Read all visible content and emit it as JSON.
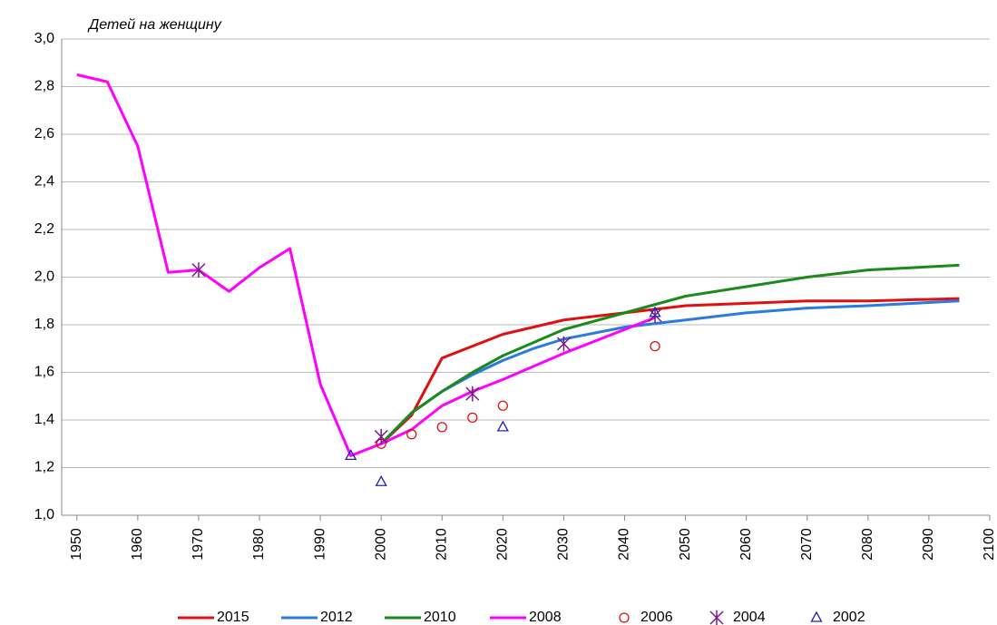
{
  "chart_data": {
    "type": "line",
    "ylabel": "Детей на женщину",
    "xlim": [
      1947.5,
      2100
    ],
    "xticks": [
      1950,
      1960,
      1970,
      1980,
      1990,
      2000,
      2010,
      2020,
      2030,
      2040,
      2050,
      2060,
      2070,
      2080,
      2090,
      2100
    ],
    "ylim": [
      1.0,
      3.0
    ],
    "yticks": [
      {
        "value": 1.0,
        "label": "1,0"
      },
      {
        "value": 1.2,
        "label": "1,2"
      },
      {
        "value": 1.4,
        "label": "1,4"
      },
      {
        "value": 1.6,
        "label": "1,6"
      },
      {
        "value": 1.8,
        "label": "1,8"
      },
      {
        "value": 2.0,
        "label": "2,0"
      },
      {
        "value": 2.2,
        "label": "2,2"
      },
      {
        "value": 2.4,
        "label": "2,4"
      },
      {
        "value": 2.6,
        "label": "2,6"
      },
      {
        "value": 2.8,
        "label": "2,8"
      },
      {
        "value": 3.0,
        "label": "3,0"
      }
    ],
    "grid": true,
    "series": [
      {
        "name": "2015",
        "color": "#e01010",
        "style": "line",
        "x": [
          2000,
          2005,
          2010,
          2015,
          2020,
          2030,
          2040,
          2050,
          2060,
          2070,
          2080,
          2095
        ],
        "values": [
          1.3,
          1.42,
          1.66,
          1.71,
          1.76,
          1.82,
          1.85,
          1.88,
          1.89,
          1.9,
          1.9,
          1.91
        ]
      },
      {
        "name": "2012",
        "color": "#2a7ae2",
        "style": "line",
        "x": [
          2000,
          2005,
          2010,
          2015,
          2020,
          2025,
          2030,
          2040,
          2050,
          2060,
          2070,
          2080,
          2095
        ],
        "values": [
          1.3,
          1.43,
          1.52,
          1.59,
          1.65,
          1.7,
          1.74,
          1.79,
          1.82,
          1.85,
          1.87,
          1.88,
          1.9
        ]
      },
      {
        "name": "2010",
        "color": "#1a8a1a",
        "style": "line",
        "x": [
          2000,
          2005,
          2010,
          2015,
          2020,
          2030,
          2040,
          2050,
          2060,
          2070,
          2080,
          2095
        ],
        "values": [
          1.3,
          1.43,
          1.52,
          1.6,
          1.67,
          1.78,
          1.85,
          1.92,
          1.96,
          2.0,
          2.03,
          2.05
        ]
      },
      {
        "name": "2008",
        "color": "#ff00ff",
        "style": "line",
        "x": [
          1950,
          1955,
          1960,
          1965,
          1970,
          1975,
          1980,
          1985,
          1990,
          1995,
          2000,
          2005,
          2010,
          2015,
          2020,
          2030,
          2045
        ],
        "values": [
          2.85,
          2.82,
          2.55,
          2.02,
          2.03,
          1.94,
          2.04,
          2.12,
          1.55,
          1.25,
          1.3,
          1.36,
          1.46,
          1.52,
          1.57,
          1.68,
          1.83
        ]
      },
      {
        "name": "2006",
        "color": "#e01010",
        "style": "circle",
        "x": [
          2000,
          2005,
          2010,
          2015,
          2020,
          2045
        ],
        "values": [
          1.3,
          1.34,
          1.37,
          1.41,
          1.46,
          1.71
        ]
      },
      {
        "name": "2004",
        "color": "#7a1a8a",
        "style": "asterisk",
        "x": [
          1970,
          2000,
          2015,
          2030,
          2045
        ],
        "values": [
          2.03,
          1.33,
          1.51,
          1.72,
          1.84
        ]
      },
      {
        "name": "2002",
        "color": "#2020c0",
        "style": "triangle",
        "x": [
          1995,
          2000,
          2020,
          2045
        ],
        "values": [
          1.25,
          1.14,
          1.37,
          1.85
        ]
      }
    ]
  }
}
